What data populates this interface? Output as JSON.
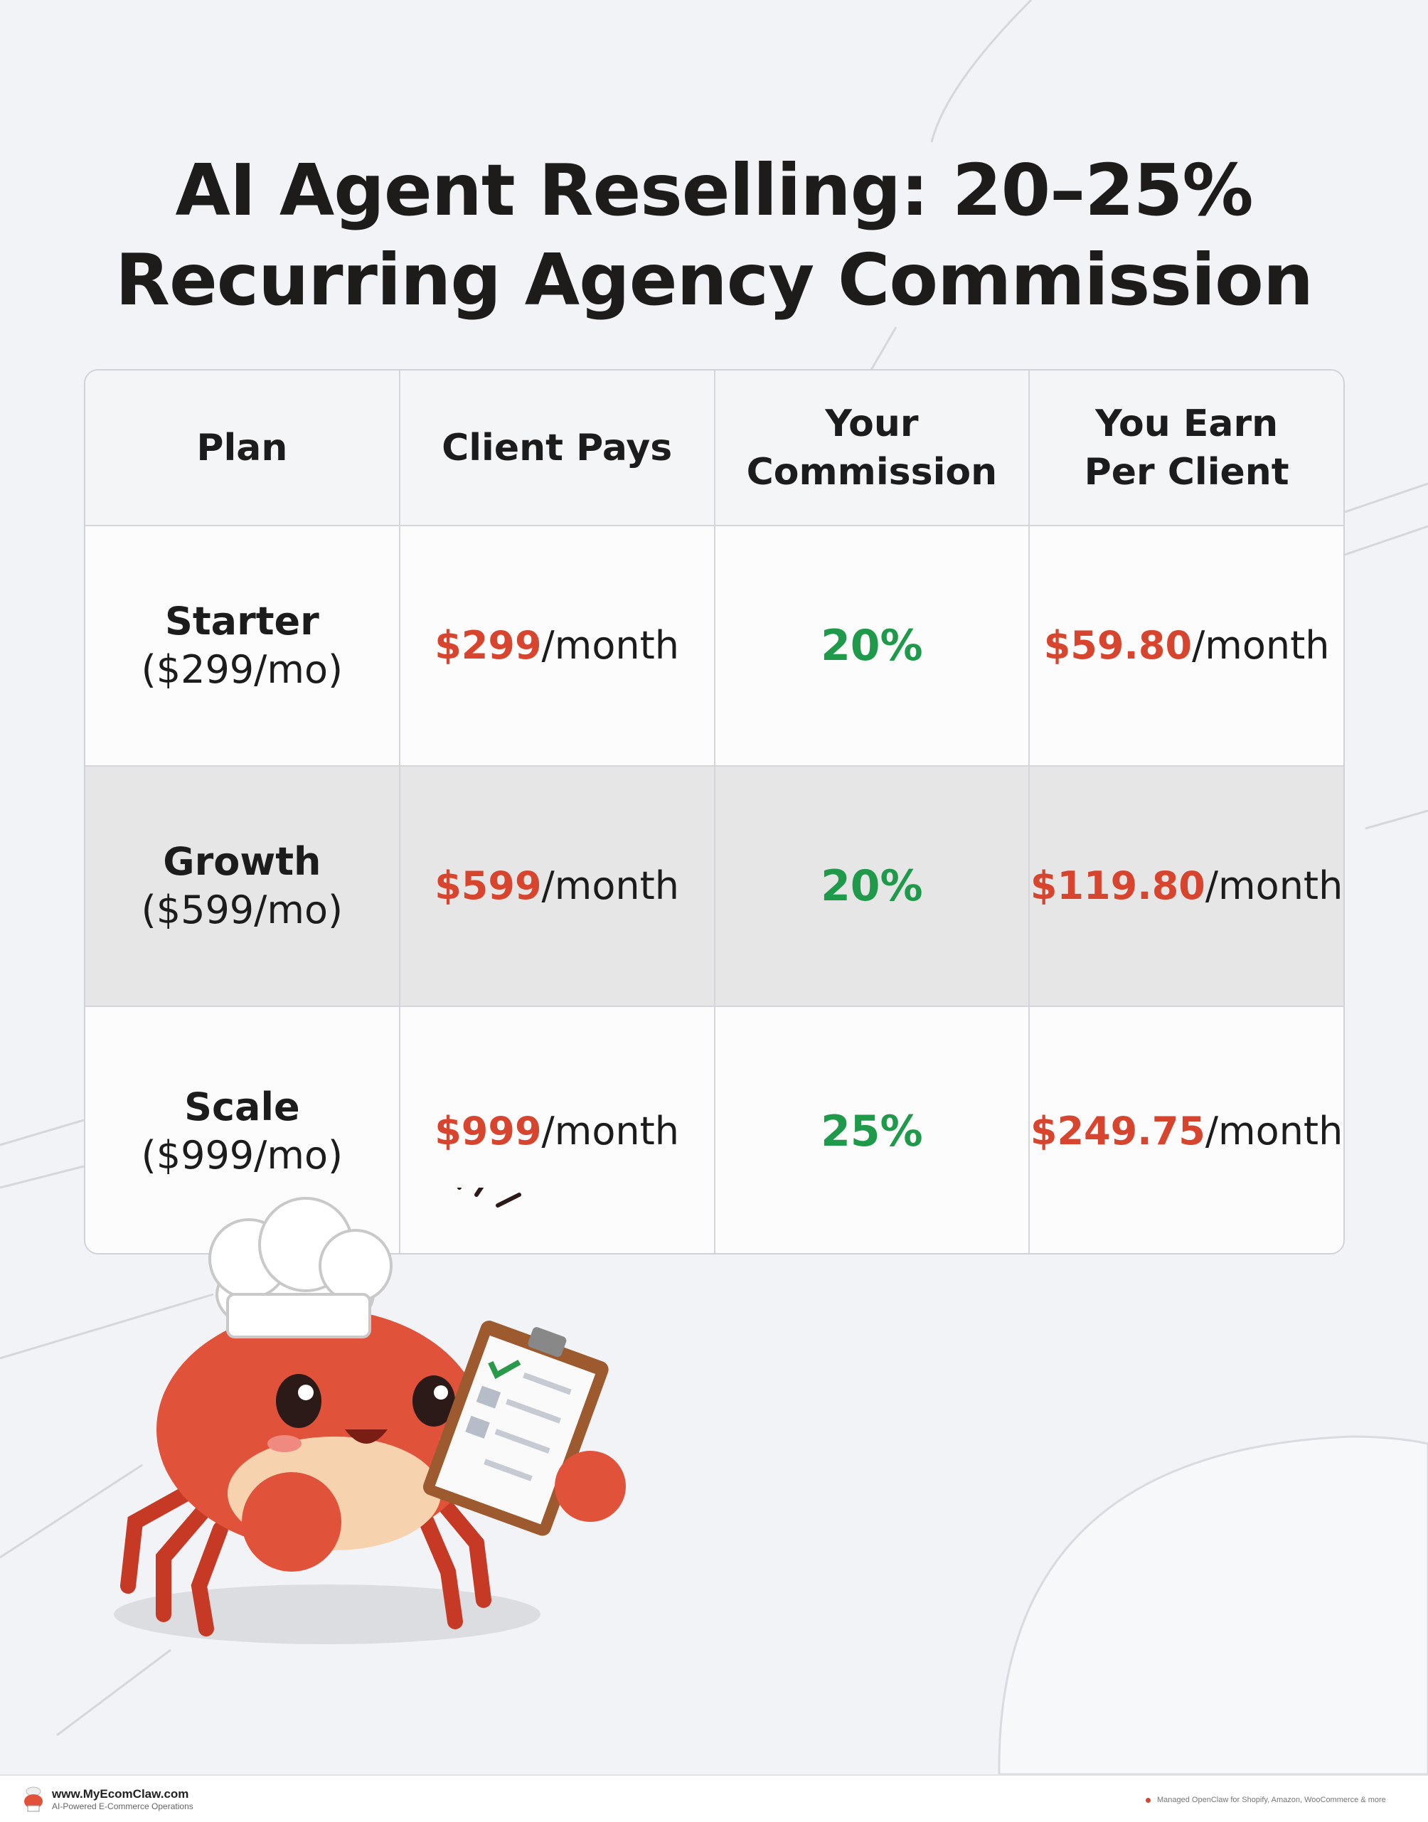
{
  "title": {
    "line1": "AI Agent Reselling: 20–25%",
    "line2": "Recurring Agency Commission"
  },
  "table": {
    "headers": [
      "Plan",
      "Client Pays",
      "Your Commission",
      "You Earn Per Client"
    ],
    "rows": [
      {
        "plan": "Starter",
        "plan_price": "($299/mo)",
        "client_pays": "$299",
        "client_pays_unit": "/month",
        "commission": "20%",
        "earn": "$59.80",
        "earn_unit": "/month"
      },
      {
        "plan": "Growth",
        "plan_price": "($599/mo)",
        "client_pays": "$599",
        "client_pays_unit": "/month",
        "commission": "20%",
        "earn": "$119.80",
        "earn_unit": "/month"
      },
      {
        "plan": "Scale",
        "plan_price": "($999/mo)",
        "client_pays": "$999",
        "client_pays_unit": "/month",
        "commission": "25%",
        "earn": "$249.75",
        "earn_unit": "/month"
      }
    ]
  },
  "footer": {
    "site": "www.MyEcomClaw.com",
    "tagline": "AI-Powered E-Commerce Operations",
    "right_text": "Managed OpenClaw for Shopify, Amazon, WooCommerce & more"
  },
  "colors": {
    "accent_red": "#d8452f",
    "accent_green": "#1f9a4a"
  },
  "icons": [
    "crab-chef-mascot",
    "clipboard-checklist-icon",
    "logo-crab-icon"
  ]
}
